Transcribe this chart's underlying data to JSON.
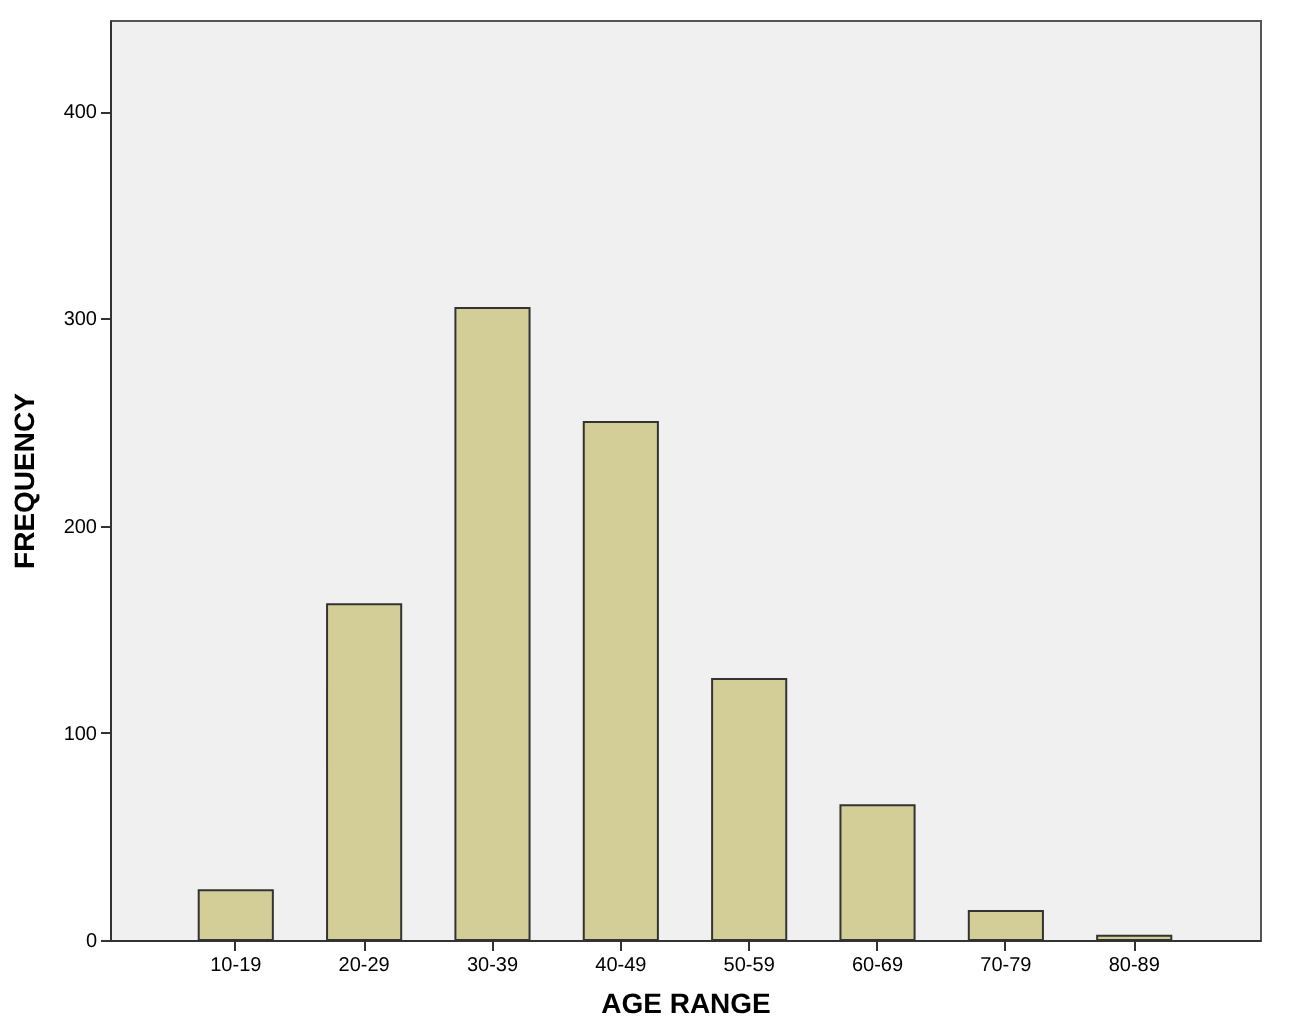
{
  "chart_data": {
    "type": "bar",
    "xlabel": "AGE RANGE",
    "ylabel": "FREQUENCY",
    "categories": [
      "10-19",
      "20-29",
      "30-39",
      "40-49",
      "50-59",
      "60-69",
      "70-79",
      "80-89"
    ],
    "values": [
      24,
      162,
      305,
      250,
      126,
      65,
      14,
      2
    ],
    "color": "#d3ce97",
    "ylim": [
      0,
      444
    ],
    "yticks": [
      0,
      100,
      200,
      300,
      400
    ],
    "grid": false
  }
}
